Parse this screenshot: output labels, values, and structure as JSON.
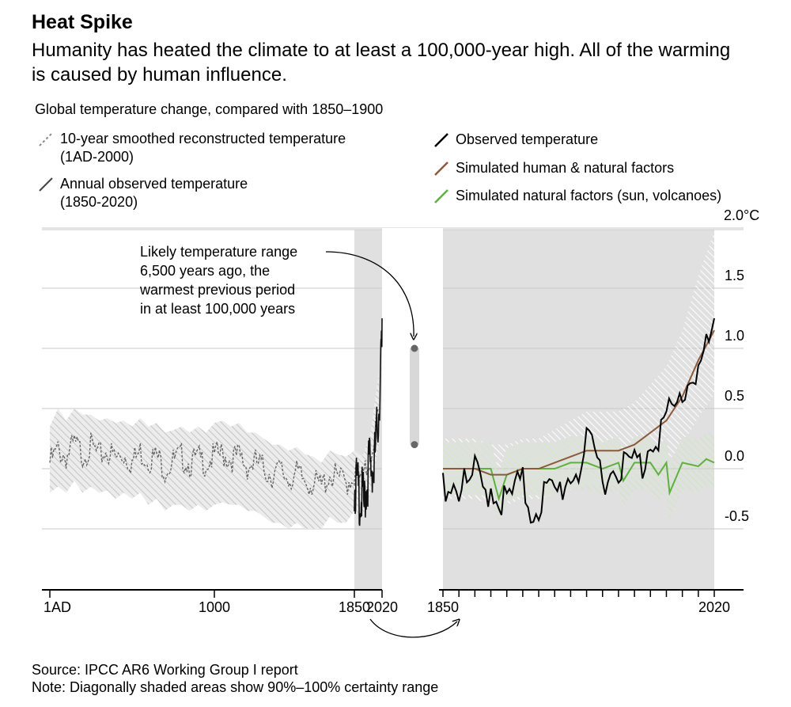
{
  "header": {
    "title": "Heat Spike",
    "subtitle": "Humanity has heated the climate to at least a 100,000-year high. All of the warming is caused by human influence.",
    "caption": "Global temperature change, compared with 1850–1900"
  },
  "legend_left": [
    {
      "line1": "10-year smoothed reconstructed temperature",
      "line2": "(1AD-2000)",
      "color": "#888888",
      "dashed": true
    },
    {
      "line1": "Annual observed temperature",
      "line2": "(1850-2020)",
      "color": "#444444",
      "dashed": false
    }
  ],
  "legend_right": [
    {
      "label": "Observed temperature",
      "color": "#000000"
    },
    {
      "label": "Simulated human & natural factors",
      "color": "#8b5a3c"
    },
    {
      "label": "Simulated natural factors (sun, volcanoes)",
      "color": "#5fb040"
    }
  ],
  "annotation": {
    "lines": [
      "Likely temperature range",
      "6,500 years ago, the",
      "warmest previous period",
      "in at least 100,000 years"
    ],
    "range": [
      0.2,
      1.0
    ]
  },
  "footer": {
    "source": "Source: IPCC AR6 Working Group I report",
    "note": "Note: Diagonally shaded areas show 90%–100% certainty range"
  },
  "colors": {
    "shade": "#e0e0e0",
    "grid": "#c8c8c8",
    "observed": "#000000",
    "human": "#8b5a3c",
    "natural": "#5fb040",
    "reconstructed": "#666666"
  },
  "chart_data": [
    {
      "type": "line",
      "panel": "left",
      "xlabel": "",
      "ylabel": "",
      "x_ticks": [
        "1AD",
        "1000",
        "1850",
        "2020"
      ],
      "xlim": [
        1,
        2020
      ],
      "ylim": [
        -1.0,
        2.0
      ],
      "shaded_x_range": [
        1850,
        2020
      ],
      "grid": true,
      "series": [
        {
          "name": "10-year smoothed reconstructed temperature",
          "style": "dashed",
          "x": [
            1,
            50,
            100,
            150,
            200,
            250,
            300,
            350,
            400,
            450,
            500,
            550,
            600,
            650,
            700,
            750,
            800,
            850,
            900,
            950,
            1000,
            1050,
            1100,
            1150,
            1200,
            1250,
            1300,
            1350,
            1400,
            1450,
            1500,
            1550,
            1600,
            1650,
            1700,
            1750,
            1800,
            1850,
            1900,
            1950,
            2000
          ],
          "y": [
            0.05,
            0.15,
            0.1,
            0.2,
            0.12,
            0.18,
            0.1,
            0.15,
            0.08,
            0.12,
            0.05,
            0.14,
            0.08,
            0.1,
            0.0,
            0.06,
            0.1,
            0.04,
            0.08,
            0.05,
            0.1,
            0.12,
            0.08,
            0.1,
            0.02,
            0.05,
            0.0,
            -0.05,
            -0.02,
            -0.08,
            -0.05,
            -0.1,
            -0.12,
            -0.15,
            -0.05,
            -0.08,
            -0.12,
            -0.05,
            -0.1,
            0.1,
            0.5
          ],
          "band_lower": [
            -0.2,
            -0.15,
            -0.2,
            -0.1,
            -0.2,
            -0.15,
            -0.2,
            -0.18,
            -0.25,
            -0.2,
            -0.25,
            -0.2,
            -0.3,
            -0.25,
            -0.35,
            -0.3,
            -0.3,
            -0.35,
            -0.3,
            -0.35,
            -0.3,
            -0.28,
            -0.3,
            -0.3,
            -0.35,
            -0.35,
            -0.4,
            -0.45,
            -0.45,
            -0.5,
            -0.45,
            -0.5,
            -0.5,
            -0.5,
            -0.4,
            -0.45,
            -0.45,
            -0.35,
            -0.4,
            -0.2,
            0.2
          ],
          "band_upper": [
            0.35,
            0.5,
            0.4,
            0.5,
            0.45,
            0.45,
            0.4,
            0.42,
            0.38,
            0.4,
            0.35,
            0.42,
            0.35,
            0.38,
            0.3,
            0.32,
            0.35,
            0.3,
            0.35,
            0.3,
            0.38,
            0.4,
            0.35,
            0.38,
            0.3,
            0.3,
            0.25,
            0.2,
            0.2,
            0.15,
            0.18,
            0.12,
            0.1,
            0.05,
            0.15,
            0.12,
            0.1,
            0.15,
            0.1,
            0.3,
            0.8
          ]
        },
        {
          "name": "Annual observed temperature",
          "style": "solid",
          "x": [
            1850,
            1860,
            1870,
            1880,
            1890,
            1900,
            1910,
            1920,
            1930,
            1940,
            1950,
            1960,
            1970,
            1980,
            1990,
            2000,
            2010,
            2015,
            2020
          ],
          "y": [
            -0.05,
            0.0,
            -0.05,
            -0.1,
            -0.15,
            -0.1,
            -0.2,
            -0.05,
            0.0,
            0.2,
            0.1,
            0.15,
            0.1,
            0.3,
            0.45,
            0.6,
            0.9,
            1.05,
            1.25
          ]
        }
      ]
    },
    {
      "type": "line",
      "panel": "right",
      "xlabel": "",
      "ylabel": "",
      "x_ticks": [
        "1850",
        "2020"
      ],
      "xlim": [
        1850,
        2020
      ],
      "ylim": [
        -1.0,
        2.0
      ],
      "y_ticks": [
        "2.0°C",
        "1.5",
        "1.0",
        "0.5",
        "0.0",
        "-0.5"
      ],
      "y_tick_values": [
        2.0,
        1.5,
        1.0,
        0.5,
        0.0,
        -0.5
      ],
      "grid": true,
      "series": [
        {
          "name": "Observed temperature",
          "x": [
            1850,
            1855,
            1860,
            1865,
            1870,
            1875,
            1880,
            1885,
            1890,
            1895,
            1900,
            1905,
            1910,
            1915,
            1920,
            1925,
            1930,
            1935,
            1940,
            1945,
            1950,
            1955,
            1960,
            1965,
            1970,
            1975,
            1980,
            1985,
            1990,
            1995,
            2000,
            2005,
            2010,
            2015,
            2020
          ],
          "y": [
            -0.05,
            0.0,
            -0.05,
            -0.1,
            0.05,
            -0.1,
            -0.05,
            -0.15,
            -0.2,
            -0.1,
            -0.05,
            -0.25,
            -0.2,
            -0.1,
            -0.15,
            -0.05,
            0.05,
            0.1,
            0.25,
            0.2,
            0.05,
            0.05,
            0.15,
            0.1,
            0.15,
            0.1,
            0.35,
            0.4,
            0.5,
            0.55,
            0.7,
            0.85,
            0.95,
            1.05,
            1.25
          ]
        },
        {
          "name": "Simulated human & natural factors",
          "x": [
            1850,
            1860,
            1870,
            1880,
            1890,
            1900,
            1910,
            1920,
            1930,
            1940,
            1950,
            1960,
            1970,
            1980,
            1990,
            2000,
            2010,
            2020
          ],
          "y": [
            0.0,
            0.0,
            0.0,
            -0.05,
            -0.05,
            0.0,
            0.0,
            0.05,
            0.1,
            0.15,
            0.15,
            0.15,
            0.2,
            0.3,
            0.4,
            0.6,
            0.9,
            1.15
          ]
        },
        {
          "name": "Simulated natural factors (sun, volcanoes)",
          "x": [
            1850,
            1860,
            1870,
            1880,
            1885,
            1890,
            1900,
            1910,
            1920,
            1930,
            1940,
            1950,
            1960,
            1963,
            1970,
            1980,
            1985,
            1990,
            1992,
            2000,
            2010,
            2015,
            2020
          ],
          "y": [
            0.0,
            0.0,
            0.0,
            0.0,
            -0.25,
            -0.05,
            0.0,
            0.0,
            0.0,
            0.05,
            0.05,
            0.0,
            0.05,
            -0.1,
            0.05,
            0.05,
            -0.05,
            0.05,
            -0.2,
            0.05,
            0.02,
            0.08,
            0.05
          ]
        }
      ]
    }
  ]
}
